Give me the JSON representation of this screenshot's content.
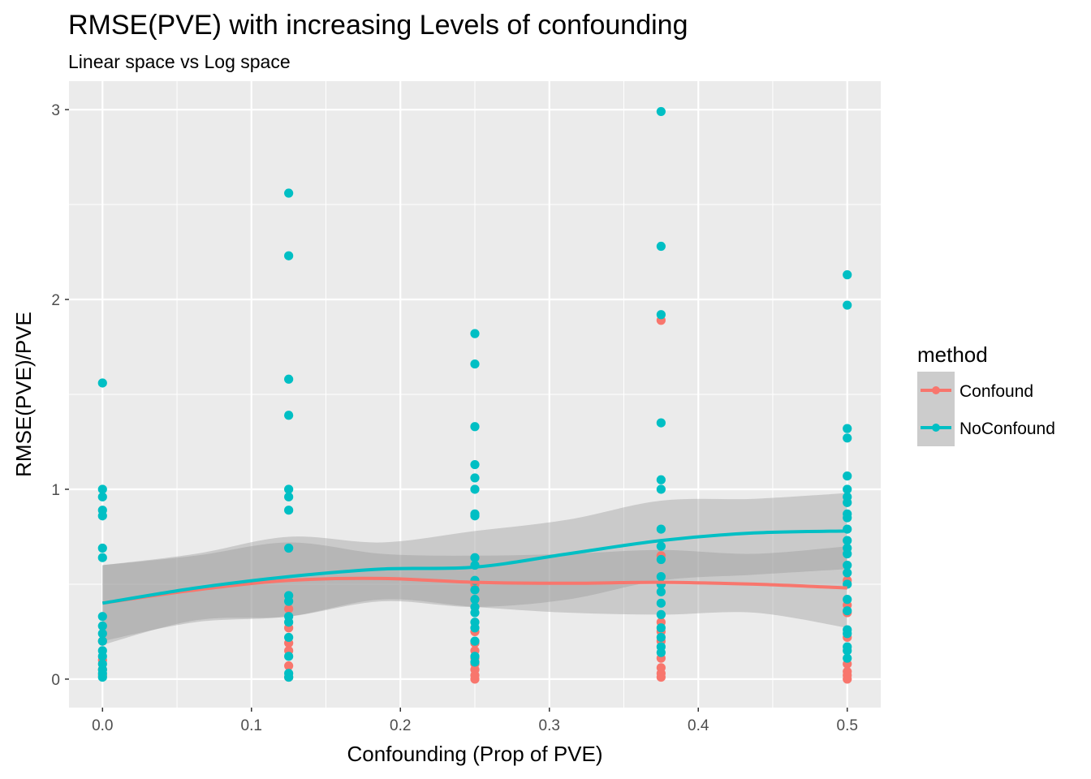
{
  "chart_data": {
    "type": "scatter",
    "title": "RMSE(PVE) with increasing Levels of confounding",
    "subtitle": "Linear space vs Log space",
    "xlabel": "Confounding (Prop of PVE)",
    "ylabel": "RMSE(PVE)/PVE",
    "xlim": [
      -0.0225,
      0.5225
    ],
    "ylim": [
      -0.15,
      3.15
    ],
    "x_ticks": [
      0.0,
      0.1,
      0.2,
      0.3,
      0.4,
      0.5
    ],
    "x_tick_labels": [
      "0.0",
      "0.1",
      "0.2",
      "0.3",
      "0.4",
      "0.5"
    ],
    "y_ticks": [
      0,
      1,
      2,
      3
    ],
    "y_tick_labels": [
      "0",
      "1",
      "2",
      "3"
    ],
    "grid": true,
    "background": "#ebebeb",
    "legend": {
      "title": "method",
      "position": "right",
      "entries": [
        "Confound",
        "NoConfound"
      ]
    },
    "series": [
      {
        "name": "Confound",
        "color": "#f8766d",
        "points": [
          {
            "x": 0.0,
            "y": 0.02
          },
          {
            "x": 0.0,
            "y": 0.05
          },
          {
            "x": 0.0,
            "y": 0.1
          },
          {
            "x": 0.0,
            "y": 0.2
          },
          {
            "x": 0.125,
            "y": 0.01
          },
          {
            "x": 0.125,
            "y": 0.07
          },
          {
            "x": 0.125,
            "y": 0.15
          },
          {
            "x": 0.125,
            "y": 0.19
          },
          {
            "x": 0.125,
            "y": 0.27
          },
          {
            "x": 0.125,
            "y": 0.37
          },
          {
            "x": 0.25,
            "y": 0.0
          },
          {
            "x": 0.25,
            "y": 0.02
          },
          {
            "x": 0.25,
            "y": 0.05
          },
          {
            "x": 0.25,
            "y": 0.08
          },
          {
            "x": 0.25,
            "y": 0.11
          },
          {
            "x": 0.25,
            "y": 0.15
          },
          {
            "x": 0.25,
            "y": 0.19
          },
          {
            "x": 0.25,
            "y": 0.25
          },
          {
            "x": 0.25,
            "y": 0.5
          },
          {
            "x": 0.375,
            "y": 0.01
          },
          {
            "x": 0.375,
            "y": 0.03
          },
          {
            "x": 0.375,
            "y": 0.06
          },
          {
            "x": 0.375,
            "y": 0.11
          },
          {
            "x": 0.375,
            "y": 0.2
          },
          {
            "x": 0.375,
            "y": 0.25
          },
          {
            "x": 0.375,
            "y": 0.3
          },
          {
            "x": 0.375,
            "y": 0.65
          },
          {
            "x": 0.375,
            "y": 1.89
          },
          {
            "x": 0.5,
            "y": 0.0
          },
          {
            "x": 0.5,
            "y": 0.02
          },
          {
            "x": 0.5,
            "y": 0.04
          },
          {
            "x": 0.5,
            "y": 0.08
          },
          {
            "x": 0.5,
            "y": 0.22
          },
          {
            "x": 0.5,
            "y": 0.35
          },
          {
            "x": 0.5,
            "y": 0.39
          },
          {
            "x": 0.5,
            "y": 0.52
          }
        ],
        "smooth": [
          {
            "x": 0.0,
            "y": 0.4
          },
          {
            "x": 0.0625,
            "y": 0.47
          },
          {
            "x": 0.125,
            "y": 0.52
          },
          {
            "x": 0.1875,
            "y": 0.53
          },
          {
            "x": 0.25,
            "y": 0.51
          },
          {
            "x": 0.3125,
            "y": 0.505
          },
          {
            "x": 0.375,
            "y": 0.51
          },
          {
            "x": 0.4375,
            "y": 0.5
          },
          {
            "x": 0.5,
            "y": 0.48
          }
        ],
        "smooth_band": [
          {
            "x": 0.0,
            "lo": 0.2,
            "hi": 0.6
          },
          {
            "x": 0.0625,
            "lo": 0.3,
            "hi": 0.65
          },
          {
            "x": 0.125,
            "lo": 0.33,
            "hi": 0.72
          },
          {
            "x": 0.1875,
            "lo": 0.42,
            "hi": 0.66
          },
          {
            "x": 0.25,
            "lo": 0.38,
            "hi": 0.65
          },
          {
            "x": 0.3125,
            "lo": 0.35,
            "hi": 0.66
          },
          {
            "x": 0.375,
            "lo": 0.34,
            "hi": 0.68
          },
          {
            "x": 0.4375,
            "lo": 0.35,
            "hi": 0.66
          },
          {
            "x": 0.5,
            "lo": 0.27,
            "hi": 0.7
          }
        ]
      },
      {
        "name": "NoConfound",
        "color": "#00bfc4",
        "points": [
          {
            "x": 0.0,
            "y": 1.56
          },
          {
            "x": 0.0,
            "y": 1.0
          },
          {
            "x": 0.0,
            "y": 0.96
          },
          {
            "x": 0.0,
            "y": 0.89
          },
          {
            "x": 0.0,
            "y": 0.86
          },
          {
            "x": 0.0,
            "y": 0.69
          },
          {
            "x": 0.0,
            "y": 0.64
          },
          {
            "x": 0.0,
            "y": 0.33
          },
          {
            "x": 0.0,
            "y": 0.28
          },
          {
            "x": 0.0,
            "y": 0.24
          },
          {
            "x": 0.0,
            "y": 0.2
          },
          {
            "x": 0.0,
            "y": 0.15
          },
          {
            "x": 0.0,
            "y": 0.12
          },
          {
            "x": 0.0,
            "y": 0.08
          },
          {
            "x": 0.0,
            "y": 0.05
          },
          {
            "x": 0.0,
            "y": 0.03
          },
          {
            "x": 0.0,
            "y": 0.01
          },
          {
            "x": 0.125,
            "y": 2.56
          },
          {
            "x": 0.125,
            "y": 2.23
          },
          {
            "x": 0.125,
            "y": 1.58
          },
          {
            "x": 0.125,
            "y": 1.39
          },
          {
            "x": 0.125,
            "y": 1.0
          },
          {
            "x": 0.125,
            "y": 0.96
          },
          {
            "x": 0.125,
            "y": 0.89
          },
          {
            "x": 0.125,
            "y": 0.69
          },
          {
            "x": 0.125,
            "y": 0.44
          },
          {
            "x": 0.125,
            "y": 0.41
          },
          {
            "x": 0.125,
            "y": 0.33
          },
          {
            "x": 0.125,
            "y": 0.3
          },
          {
            "x": 0.125,
            "y": 0.22
          },
          {
            "x": 0.125,
            "y": 0.12
          },
          {
            "x": 0.125,
            "y": 0.03
          },
          {
            "x": 0.125,
            "y": 0.01
          },
          {
            "x": 0.25,
            "y": 1.82
          },
          {
            "x": 0.25,
            "y": 1.66
          },
          {
            "x": 0.25,
            "y": 1.33
          },
          {
            "x": 0.25,
            "y": 1.13
          },
          {
            "x": 0.25,
            "y": 1.06
          },
          {
            "x": 0.25,
            "y": 1.0
          },
          {
            "x": 0.25,
            "y": 0.87
          },
          {
            "x": 0.25,
            "y": 0.86
          },
          {
            "x": 0.25,
            "y": 0.64
          },
          {
            "x": 0.25,
            "y": 0.6
          },
          {
            "x": 0.25,
            "y": 0.52
          },
          {
            "x": 0.25,
            "y": 0.47
          },
          {
            "x": 0.25,
            "y": 0.42
          },
          {
            "x": 0.25,
            "y": 0.38
          },
          {
            "x": 0.25,
            "y": 0.35
          },
          {
            "x": 0.25,
            "y": 0.3
          },
          {
            "x": 0.25,
            "y": 0.27
          },
          {
            "x": 0.25,
            "y": 0.2
          },
          {
            "x": 0.25,
            "y": 0.12
          },
          {
            "x": 0.25,
            "y": 0.09
          },
          {
            "x": 0.375,
            "y": 2.99
          },
          {
            "x": 0.375,
            "y": 2.28
          },
          {
            "x": 0.375,
            "y": 1.92
          },
          {
            "x": 0.375,
            "y": 1.35
          },
          {
            "x": 0.375,
            "y": 1.05
          },
          {
            "x": 0.375,
            "y": 1.0
          },
          {
            "x": 0.375,
            "y": 0.79
          },
          {
            "x": 0.375,
            "y": 0.7
          },
          {
            "x": 0.375,
            "y": 0.63
          },
          {
            "x": 0.375,
            "y": 0.54
          },
          {
            "x": 0.375,
            "y": 0.5
          },
          {
            "x": 0.375,
            "y": 0.46
          },
          {
            "x": 0.375,
            "y": 0.4
          },
          {
            "x": 0.375,
            "y": 0.34
          },
          {
            "x": 0.375,
            "y": 0.27
          },
          {
            "x": 0.375,
            "y": 0.22
          },
          {
            "x": 0.375,
            "y": 0.17
          },
          {
            "x": 0.375,
            "y": 0.14
          },
          {
            "x": 0.5,
            "y": 2.13
          },
          {
            "x": 0.5,
            "y": 1.97
          },
          {
            "x": 0.5,
            "y": 1.32
          },
          {
            "x": 0.5,
            "y": 1.27
          },
          {
            "x": 0.5,
            "y": 1.07
          },
          {
            "x": 0.5,
            "y": 1.0
          },
          {
            "x": 0.5,
            "y": 0.96
          },
          {
            "x": 0.5,
            "y": 0.93
          },
          {
            "x": 0.5,
            "y": 0.87
          },
          {
            "x": 0.5,
            "y": 0.85
          },
          {
            "x": 0.5,
            "y": 0.79
          },
          {
            "x": 0.5,
            "y": 0.73
          },
          {
            "x": 0.5,
            "y": 0.69
          },
          {
            "x": 0.5,
            "y": 0.66
          },
          {
            "x": 0.5,
            "y": 0.6
          },
          {
            "x": 0.5,
            "y": 0.56
          },
          {
            "x": 0.5,
            "y": 0.5
          },
          {
            "x": 0.5,
            "y": 0.42
          },
          {
            "x": 0.5,
            "y": 0.36
          },
          {
            "x": 0.5,
            "y": 0.26
          },
          {
            "x": 0.5,
            "y": 0.24
          },
          {
            "x": 0.5,
            "y": 0.17
          },
          {
            "x": 0.5,
            "y": 0.15
          },
          {
            "x": 0.5,
            "y": 0.11
          }
        ],
        "smooth": [
          {
            "x": 0.0,
            "y": 0.4
          },
          {
            "x": 0.0625,
            "y": 0.48
          },
          {
            "x": 0.125,
            "y": 0.54
          },
          {
            "x": 0.1875,
            "y": 0.58
          },
          {
            "x": 0.25,
            "y": 0.59
          },
          {
            "x": 0.3125,
            "y": 0.66
          },
          {
            "x": 0.375,
            "y": 0.73
          },
          {
            "x": 0.4375,
            "y": 0.77
          },
          {
            "x": 0.5,
            "y": 0.78
          }
        ],
        "smooth_band": [
          {
            "x": 0.0,
            "lo": 0.18,
            "hi": 0.6
          },
          {
            "x": 0.0625,
            "lo": 0.31,
            "hi": 0.66
          },
          {
            "x": 0.125,
            "lo": 0.33,
            "hi": 0.75
          },
          {
            "x": 0.1875,
            "lo": 0.41,
            "hi": 0.72
          },
          {
            "x": 0.25,
            "lo": 0.38,
            "hi": 0.78
          },
          {
            "x": 0.3125,
            "lo": 0.42,
            "hi": 0.84
          },
          {
            "x": 0.375,
            "lo": 0.52,
            "hi": 0.94
          },
          {
            "x": 0.4375,
            "lo": 0.55,
            "hi": 0.95
          },
          {
            "x": 0.5,
            "lo": 0.58,
            "hi": 0.98
          }
        ]
      }
    ]
  }
}
